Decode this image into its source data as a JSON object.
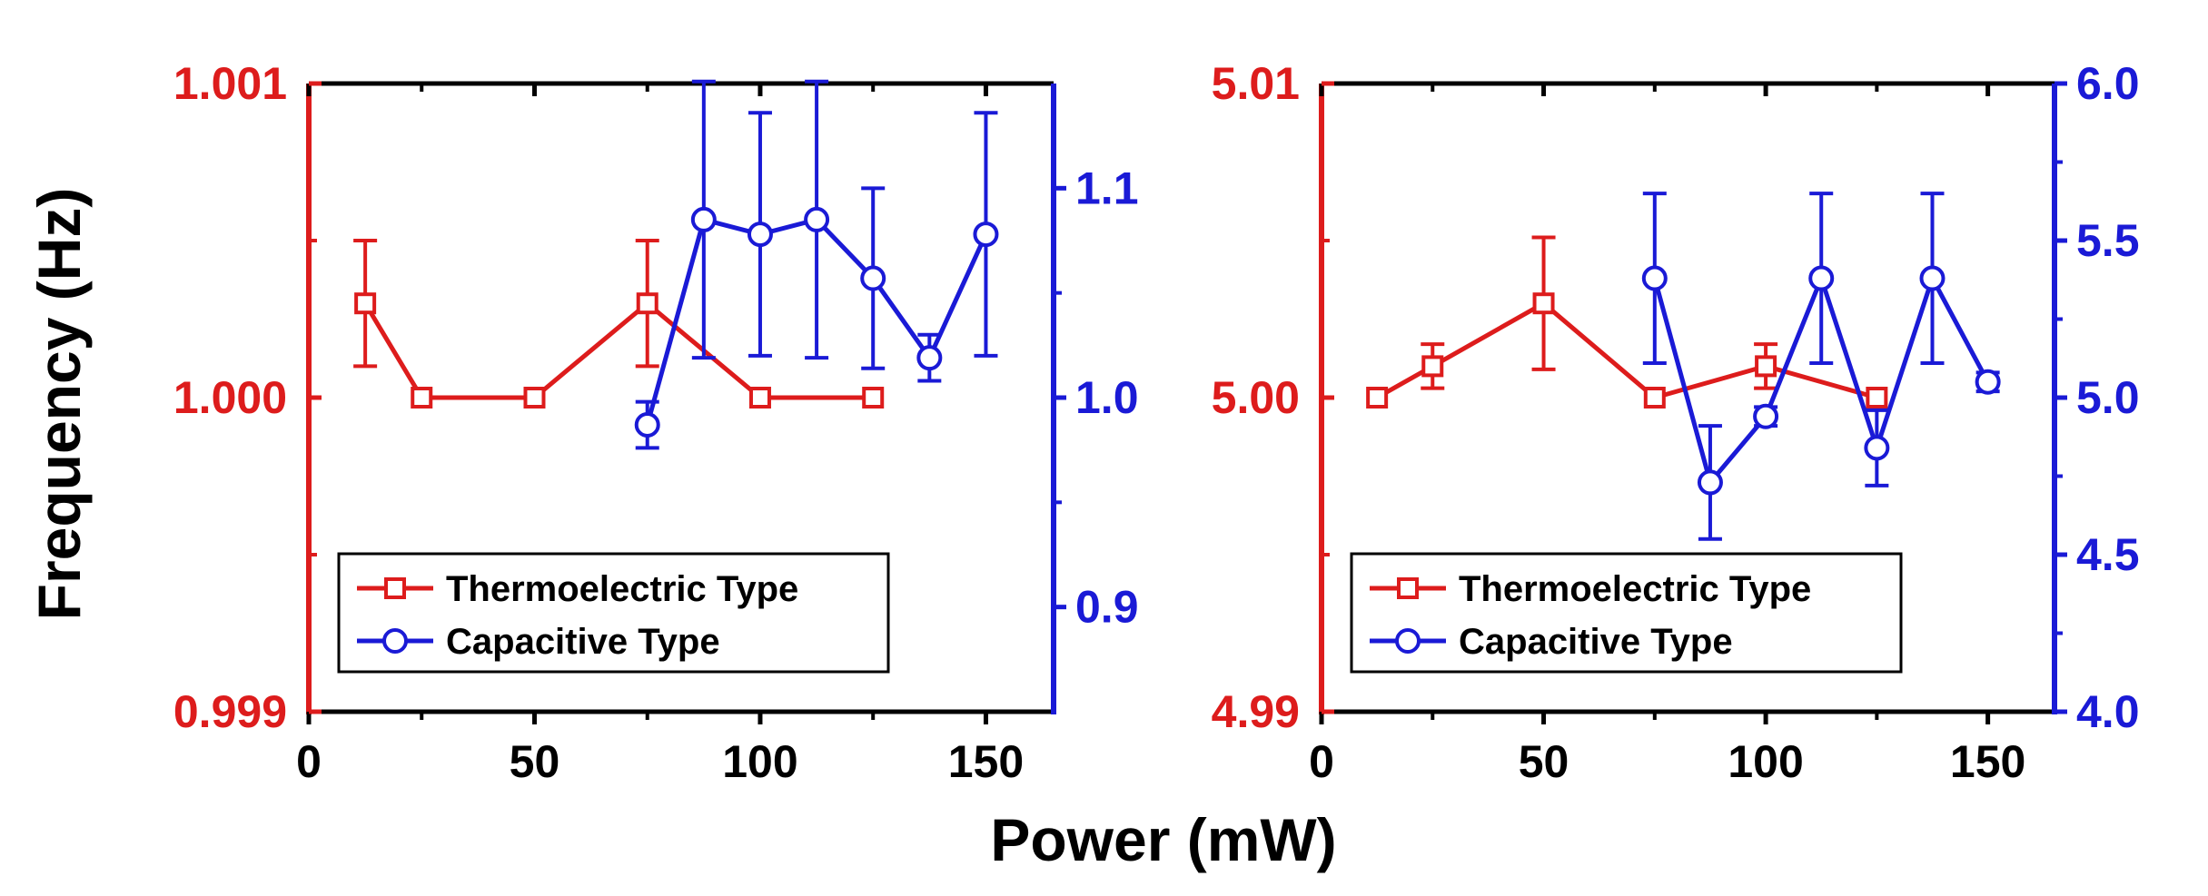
{
  "colors": {
    "thermo": "#dd1c1c",
    "capacitive": "#1a1ad6",
    "axis": "#000000",
    "background": "#ffffff"
  },
  "ylabel": "Frequency (Hz)",
  "xlabel": "Power (mW)",
  "chart_data": [
    {
      "type": "line",
      "title": "",
      "xlim": [
        0,
        165
      ],
      "xticks": [
        0,
        50,
        100,
        150
      ],
      "xtick_labels": [
        "0",
        "50",
        "100",
        "150"
      ],
      "left_ylim": [
        0.999,
        1.001
      ],
      "left_yticks": [
        0.999,
        1.0,
        1.001
      ],
      "left_ytick_labels": [
        "0.999",
        "1.000",
        "1.001"
      ],
      "left_minor_yticks": [
        0.9995,
        1.0005
      ],
      "right_ylim": [
        0.85,
        1.15
      ],
      "right_yticks": [
        0.9,
        1.0,
        1.1
      ],
      "right_ytick_labels": [
        "0.9",
        "1.0",
        "1.1"
      ],
      "right_minor_yticks": [
        0.95,
        1.05
      ],
      "legend": [
        "Thermoelectric Type",
        "Capacitive Type"
      ],
      "legend_position": "lower-left",
      "series": [
        {
          "name": "Thermoelectric Type",
          "axis": "left",
          "marker": "square",
          "x": [
            12.5,
            25,
            50,
            75,
            100,
            125
          ],
          "y": [
            1.0003,
            1.0,
            1.0,
            1.0003,
            1.0,
            1.0
          ],
          "err": [
            0.0002,
            0,
            0,
            0.0002,
            0,
            0
          ]
        },
        {
          "name": "Capacitive Type",
          "axis": "right",
          "marker": "circle",
          "x": [
            75,
            87.5,
            100,
            112.5,
            125,
            137.5,
            150
          ],
          "y": [
            0.987,
            1.085,
            1.078,
            1.085,
            1.057,
            1.019,
            1.078
          ],
          "err": [
            0.011,
            0.066,
            0.058,
            0.066,
            0.043,
            0.011,
            0.058
          ]
        }
      ]
    },
    {
      "type": "line",
      "title": "",
      "xlim": [
        0,
        165
      ],
      "xticks": [
        0,
        50,
        100,
        150
      ],
      "xtick_labels": [
        "0",
        "50",
        "100",
        "150"
      ],
      "left_ylim": [
        4.99,
        5.01
      ],
      "left_yticks": [
        4.99,
        5.0,
        5.01
      ],
      "left_ytick_labels": [
        "4.99",
        "5.00",
        "5.01"
      ],
      "left_minor_yticks": [
        4.995,
        5.005
      ],
      "right_ylim": [
        4.0,
        6.0
      ],
      "right_yticks": [
        4.0,
        4.5,
        5.0,
        5.5,
        6.0
      ],
      "right_ytick_labels": [
        "4.0",
        "4.5",
        "5.0",
        "5.5",
        "6.0"
      ],
      "right_minor_yticks": [
        4.25,
        4.75,
        5.25,
        5.75
      ],
      "legend": [
        "Thermoelectric Type",
        "Capacitive Type"
      ],
      "legend_position": "lower-left",
      "series": [
        {
          "name": "Thermoelectric Type",
          "axis": "left",
          "marker": "square",
          "x": [
            12.5,
            25,
            50,
            75,
            100,
            125
          ],
          "y": [
            5.0,
            5.001,
            5.003,
            5.0,
            5.001,
            5.0
          ],
          "err": [
            0,
            0.0007,
            0.0021,
            0,
            0.0007,
            0
          ]
        },
        {
          "name": "Capacitive Type",
          "axis": "right",
          "marker": "circle",
          "x": [
            75,
            87.5,
            100,
            112.5,
            125,
            137.5,
            150
          ],
          "y": [
            5.38,
            4.73,
            4.94,
            5.38,
            4.84,
            5.38,
            5.05
          ],
          "err": [
            0.27,
            0.18,
            0.03,
            0.27,
            0.12,
            0.27,
            0.03
          ]
        }
      ]
    }
  ]
}
